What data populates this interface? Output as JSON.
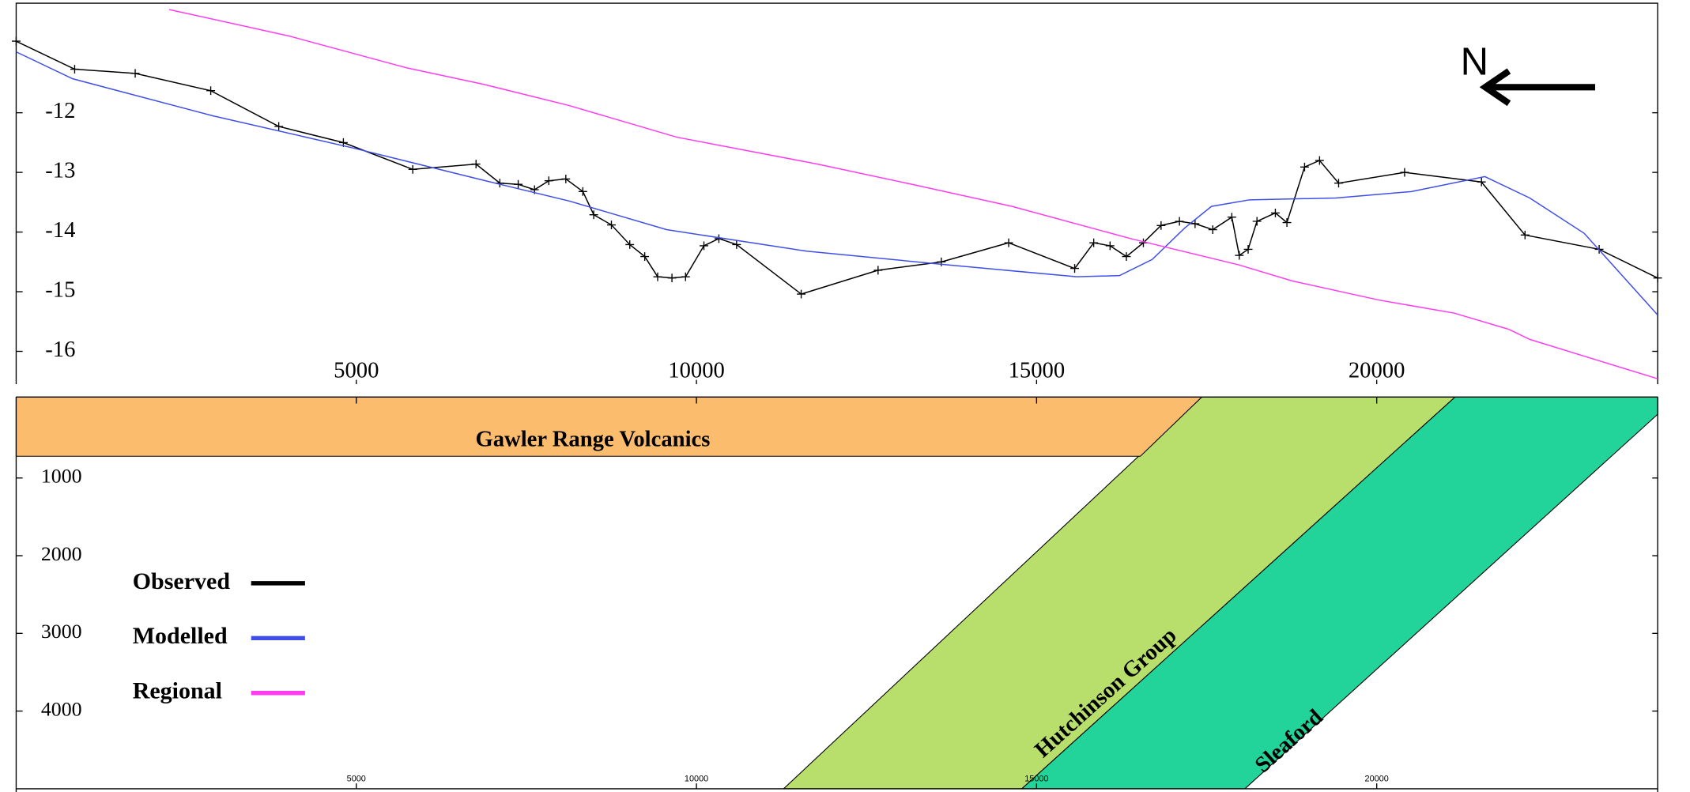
{
  "chart_data": [
    {
      "type": "line",
      "north_label": "N",
      "xlim": [
        0,
        24130
      ],
      "xticks": [
        5000,
        10000,
        15000,
        20000
      ],
      "ylim": [
        -16.55,
        -10.2
      ],
      "yticks": [
        -12,
        -13,
        -14,
        -15,
        -16
      ],
      "legend": "lower-left",
      "series": [
        {
          "name": "Observed",
          "color": "#000000",
          "markers": true,
          "x": [
            0,
            860,
            1750,
            2860,
            3860,
            4810,
            5830,
            6760,
            7110,
            7380,
            7620,
            7830,
            8080,
            8330,
            8490,
            8750,
            9020,
            9240,
            9430,
            9640,
            9840,
            10110,
            10330,
            10590,
            11540,
            12670,
            13600,
            14590,
            15560,
            15840,
            16080,
            16320,
            16570,
            16830,
            17100,
            17330,
            17590,
            17870,
            17980,
            18110,
            18240,
            18510,
            18680,
            18940,
            19160,
            19440,
            20410,
            21540,
            22180,
            23270,
            24130
          ],
          "values": [
            -10.8,
            -11.27,
            -11.34,
            -11.63,
            -12.23,
            -12.5,
            -12.95,
            -12.86,
            -13.18,
            -13.2,
            -13.29,
            -13.14,
            -13.11,
            -13.32,
            -13.71,
            -13.88,
            -14.21,
            -14.41,
            -14.75,
            -14.77,
            -14.75,
            -14.23,
            -14.11,
            -14.21,
            -15.04,
            -14.64,
            -14.5,
            -14.18,
            -14.61,
            -14.18,
            -14.23,
            -14.41,
            -14.18,
            -13.89,
            -13.82,
            -13.86,
            -13.96,
            -13.75,
            -14.39,
            -14.29,
            -13.82,
            -13.68,
            -13.84,
            -12.91,
            -12.8,
            -13.18,
            -13.0,
            -13.16,
            -14.05,
            -14.29,
            -14.77
          ]
        },
        {
          "name": "Modelled",
          "color": "#3f4fe8",
          "markers": false,
          "x": [
            0,
            830,
            2890,
            4950,
            6860,
            8130,
            9560,
            11620,
            13680,
            15590,
            16220,
            16700,
            17180,
            17570,
            18130,
            19400,
            20510,
            21590,
            22250,
            23050,
            24130
          ],
          "values": [
            -10.98,
            -11.43,
            -12.05,
            -12.59,
            -13.13,
            -13.48,
            -13.96,
            -14.32,
            -14.55,
            -14.75,
            -14.73,
            -14.46,
            -13.93,
            -13.57,
            -13.46,
            -13.43,
            -13.32,
            -13.07,
            -13.43,
            -14.02,
            -15.39
          ]
        },
        {
          "name": "Regional",
          "color": "#ff3cf0",
          "markers": false,
          "x": [
            2250,
            4000,
            5750,
            6860,
            8130,
            9710,
            11780,
            13210,
            14640,
            16380,
            17970,
            18760,
            20030,
            21140,
            21940,
            22250,
            24130
          ],
          "values": [
            -10.27,
            -10.71,
            -11.25,
            -11.52,
            -11.88,
            -12.41,
            -12.86,
            -13.21,
            -13.57,
            -14.11,
            -14.55,
            -14.82,
            -15.14,
            -15.36,
            -15.63,
            -15.8,
            -16.46
          ]
        }
      ]
    },
    {
      "type": "section",
      "xlim": [
        0,
        24130
      ],
      "xticks": [
        5000,
        10000,
        15000,
        20000
      ],
      "ylim": [
        0,
        5000
      ],
      "yticks": [
        1000,
        2000,
        3000,
        4000
      ],
      "units": [
        {
          "name": "Hutchinson Group",
          "color": "#b8de6b"
        },
        {
          "name": "Sleaford",
          "color": "#22d49a"
        },
        {
          "name": "Gawler Range Volcanics",
          "color": "#fbbc6e"
        }
      ]
    }
  ]
}
